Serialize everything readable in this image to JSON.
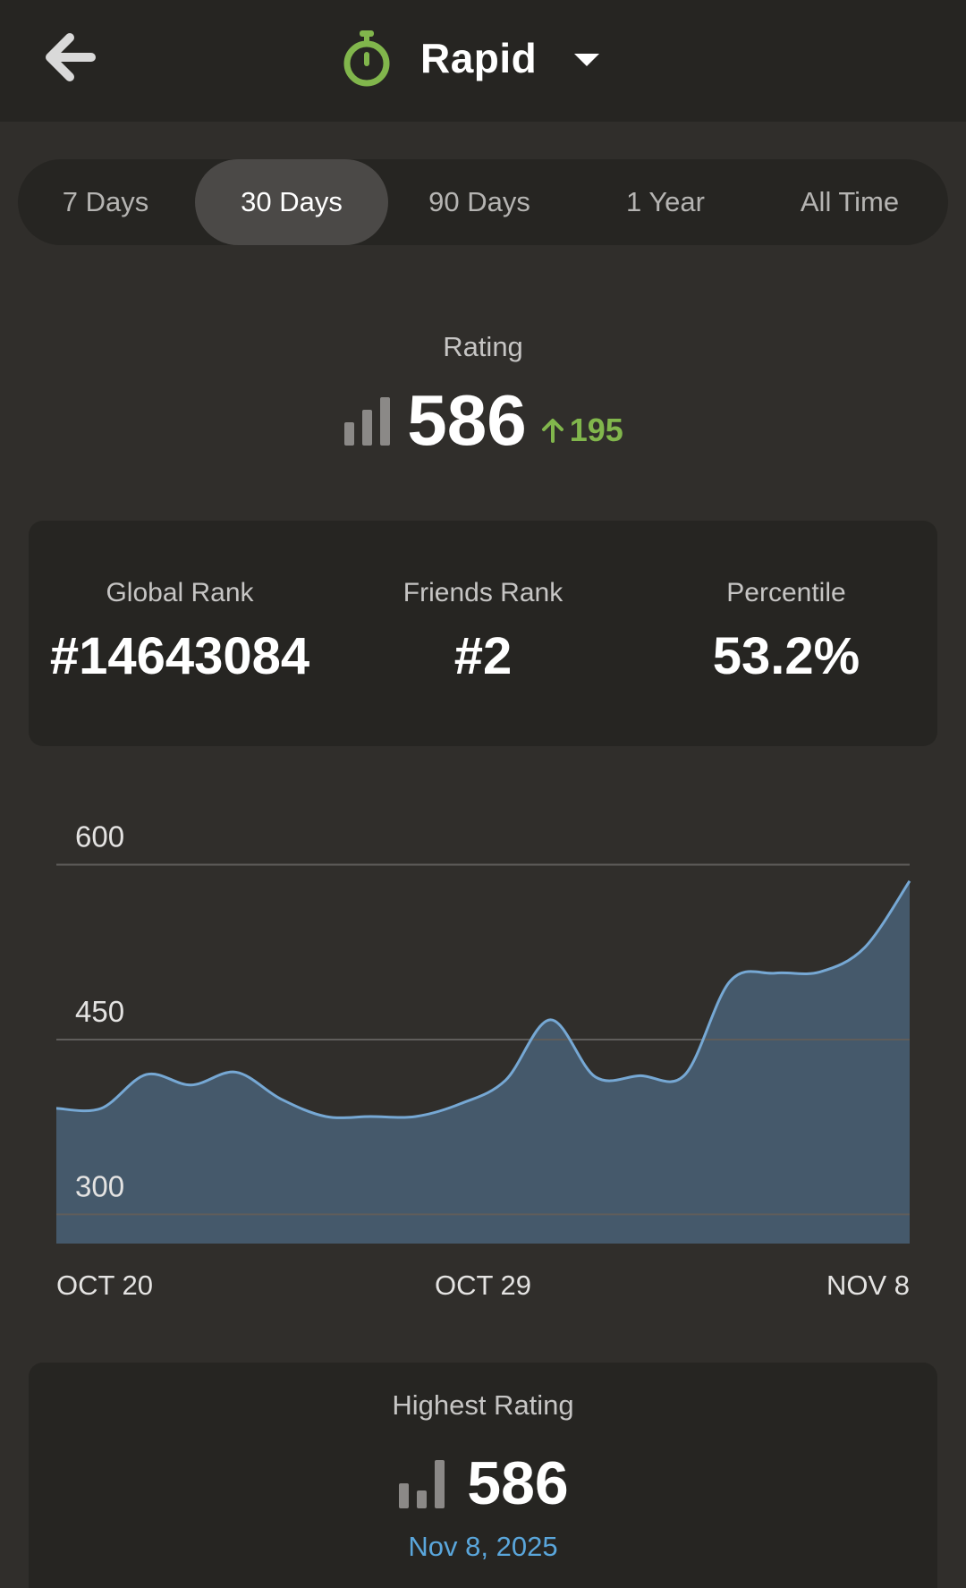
{
  "header": {
    "title": "Rapid",
    "back_icon": "arrow-left-icon",
    "mode_icon": "stopwatch-icon",
    "dropdown_icon": "caret-down-icon"
  },
  "range_tabs": [
    {
      "label": "7 Days",
      "active": false
    },
    {
      "label": "30 Days",
      "active": true
    },
    {
      "label": "90 Days",
      "active": false
    },
    {
      "label": "1 Year",
      "active": false
    },
    {
      "label": "All Time",
      "active": false
    }
  ],
  "rating": {
    "label": "Rating",
    "value": "586",
    "change": "195",
    "change_color": "#81b64c"
  },
  "stats": [
    {
      "label": "Global Rank",
      "value": "#14643084"
    },
    {
      "label": "Friends Rank",
      "value": "#2"
    },
    {
      "label": "Percentile",
      "value": "53.2%"
    }
  ],
  "chart_data": {
    "type": "area",
    "x": [
      "Oct 20",
      "Oct 21",
      "Oct 22",
      "Oct 23",
      "Oct 24",
      "Oct 25",
      "Oct 26",
      "Oct 27",
      "Oct 28",
      "Oct 29",
      "Oct 30",
      "Oct 31",
      "Nov 1",
      "Nov 2",
      "Nov 3",
      "Nov 4",
      "Nov 5",
      "Nov 6",
      "Nov 7",
      "Nov 8"
    ],
    "x_ticks": [
      "OCT 20",
      "OCT 29",
      "NOV 8"
    ],
    "y_ticks": [
      600,
      450,
      300
    ],
    "ylim": [
      275,
      605
    ],
    "values": [
      391,
      391,
      420,
      411,
      422,
      399,
      384,
      384,
      384,
      395,
      415,
      467,
      418,
      419,
      420,
      500,
      507,
      508,
      529,
      586
    ],
    "grid": true,
    "fill_color": "#45596b",
    "line_color": "#76a8d4"
  },
  "highest_rating": {
    "label": "Highest Rating",
    "value": "586",
    "date": "Nov 8, 2025"
  }
}
